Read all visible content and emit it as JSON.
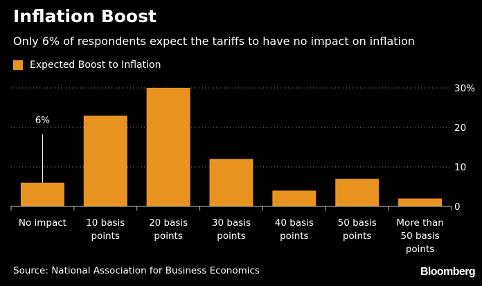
{
  "title": "Inflation Boost",
  "subtitle": "Only 6% of respondents expect the tariffs to have no impact on inflation",
  "source": "Source: National Association for Business Economics",
  "brand": "Bloomberg",
  "colors": {
    "background": "#000000",
    "bar": "#E8931F",
    "text": "#FFFFFF",
    "grid": "#8A8A8A"
  },
  "chart_data": {
    "type": "bar",
    "categories": [
      [
        "No impact"
      ],
      [
        "10 basis",
        "points"
      ],
      [
        "20 basis",
        "points"
      ],
      [
        "30 basis",
        "points"
      ],
      [
        "40 basis",
        "points"
      ],
      [
        "50 basis",
        "points"
      ],
      [
        "More than",
        "50 basis",
        "points"
      ]
    ],
    "series": [
      {
        "name": "Expected Boost to Inflation",
        "values": [
          6,
          23,
          30,
          12,
          4,
          7,
          2
        ]
      }
    ],
    "yticks": [
      "0",
      "10",
      "20",
      "30%"
    ],
    "ytick_values": [
      0,
      10,
      20,
      30
    ],
    "ylim": [
      0,
      30
    ],
    "grid": true,
    "annotation": {
      "text": "6%",
      "category_index": 0
    },
    "legend_position": "top-left"
  }
}
